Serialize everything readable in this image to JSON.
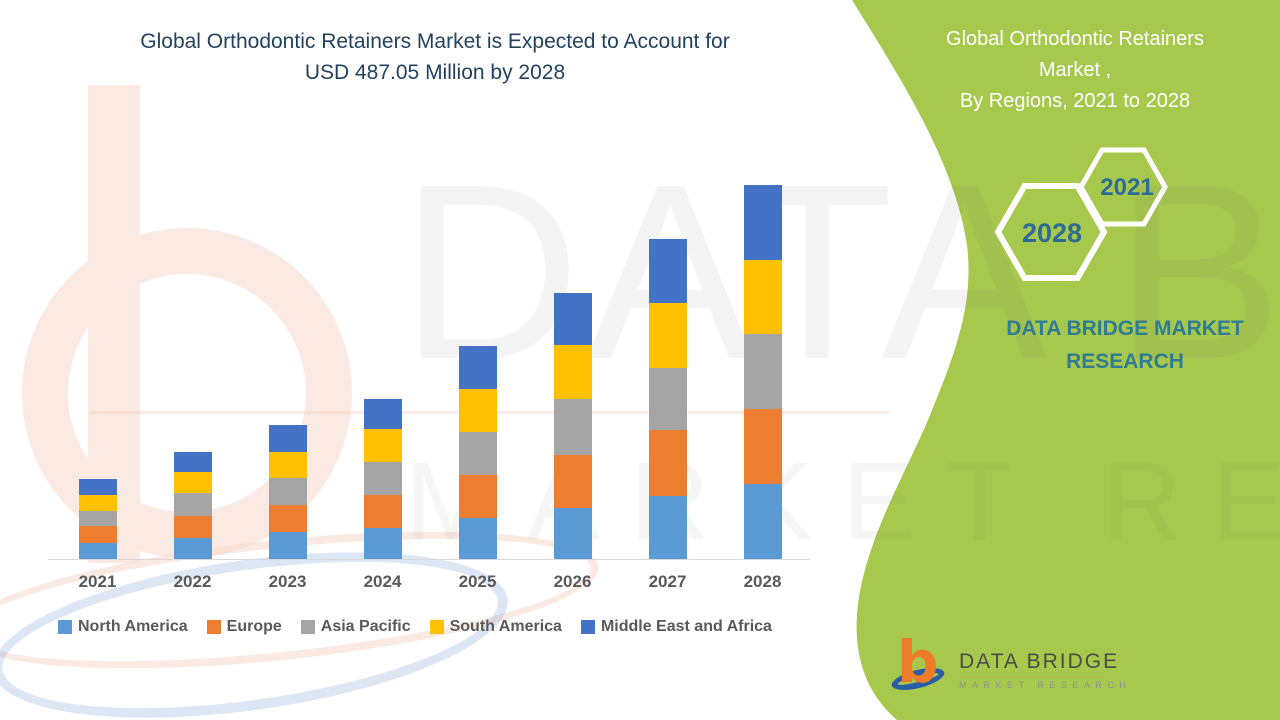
{
  "header": {
    "title_line1": "Global Orthodontic Retainers Market is Expected to Account for",
    "title_line2": "USD 487.05 Million by 2028"
  },
  "sidebar": {
    "title_line1": "Global Orthodontic Retainers",
    "title_line2": "Market ,",
    "title_line3": "By Regions, 2021 to 2028",
    "hexagons": [
      {
        "label": "2021"
      },
      {
        "label": "2028"
      }
    ],
    "brand_line1": "DATA BRIDGE MARKET",
    "brand_line2": "RESEARCH",
    "background_color": "#a6c84d",
    "brand_text_color": "#2f7c93",
    "hexagon_year_color": "#2f6c95"
  },
  "watermark": {
    "line1": "DATA BRIDGE",
    "line2": "MARKET RESEARCH"
  },
  "logo": {
    "monogram": "b",
    "title": "DATA BRIDGE",
    "subtitle": "MARKET RESEARCH"
  },
  "chart_data": {
    "type": "bar",
    "stacked": true,
    "title": "Global Orthodontic Retainers Market is Expected to Account for USD 487.05 Million by 2028",
    "unit": "USD Million",
    "categories": [
      "2021",
      "2022",
      "2023",
      "2024",
      "2025",
      "2026",
      "2027",
      "2028"
    ],
    "series": [
      {
        "name": "North America",
        "color": "#5b9bd5",
        "values": [
          21,
          28,
          35,
          40,
          53,
          66,
          82,
          97.5
        ]
      },
      {
        "name": "Europe",
        "color": "#ed7d31",
        "values": [
          22,
          28,
          35,
          43,
          57,
          70,
          86,
          97.5
        ]
      },
      {
        "name": "Asia Pacific",
        "color": "#a5a5a5",
        "values": [
          20,
          30,
          35,
          43,
          56,
          73,
          81,
          97.5
        ]
      },
      {
        "name": "South America",
        "color": "#ffc000",
        "values": [
          21,
          27,
          35,
          43,
          56,
          70,
          85,
          97.5
        ]
      },
      {
        "name": "Middle East and Africa",
        "color": "#4472c4",
        "values": [
          20,
          26,
          34,
          39,
          56,
          67,
          83,
          97.05
        ]
      }
    ],
    "totals": [
      104,
      139,
      174,
      208,
      278,
      346,
      417,
      487.05
    ],
    "ylim": [
      0,
      500
    ],
    "grid": false,
    "legend_position": "bottom",
    "xlabel": "",
    "ylabel": ""
  }
}
